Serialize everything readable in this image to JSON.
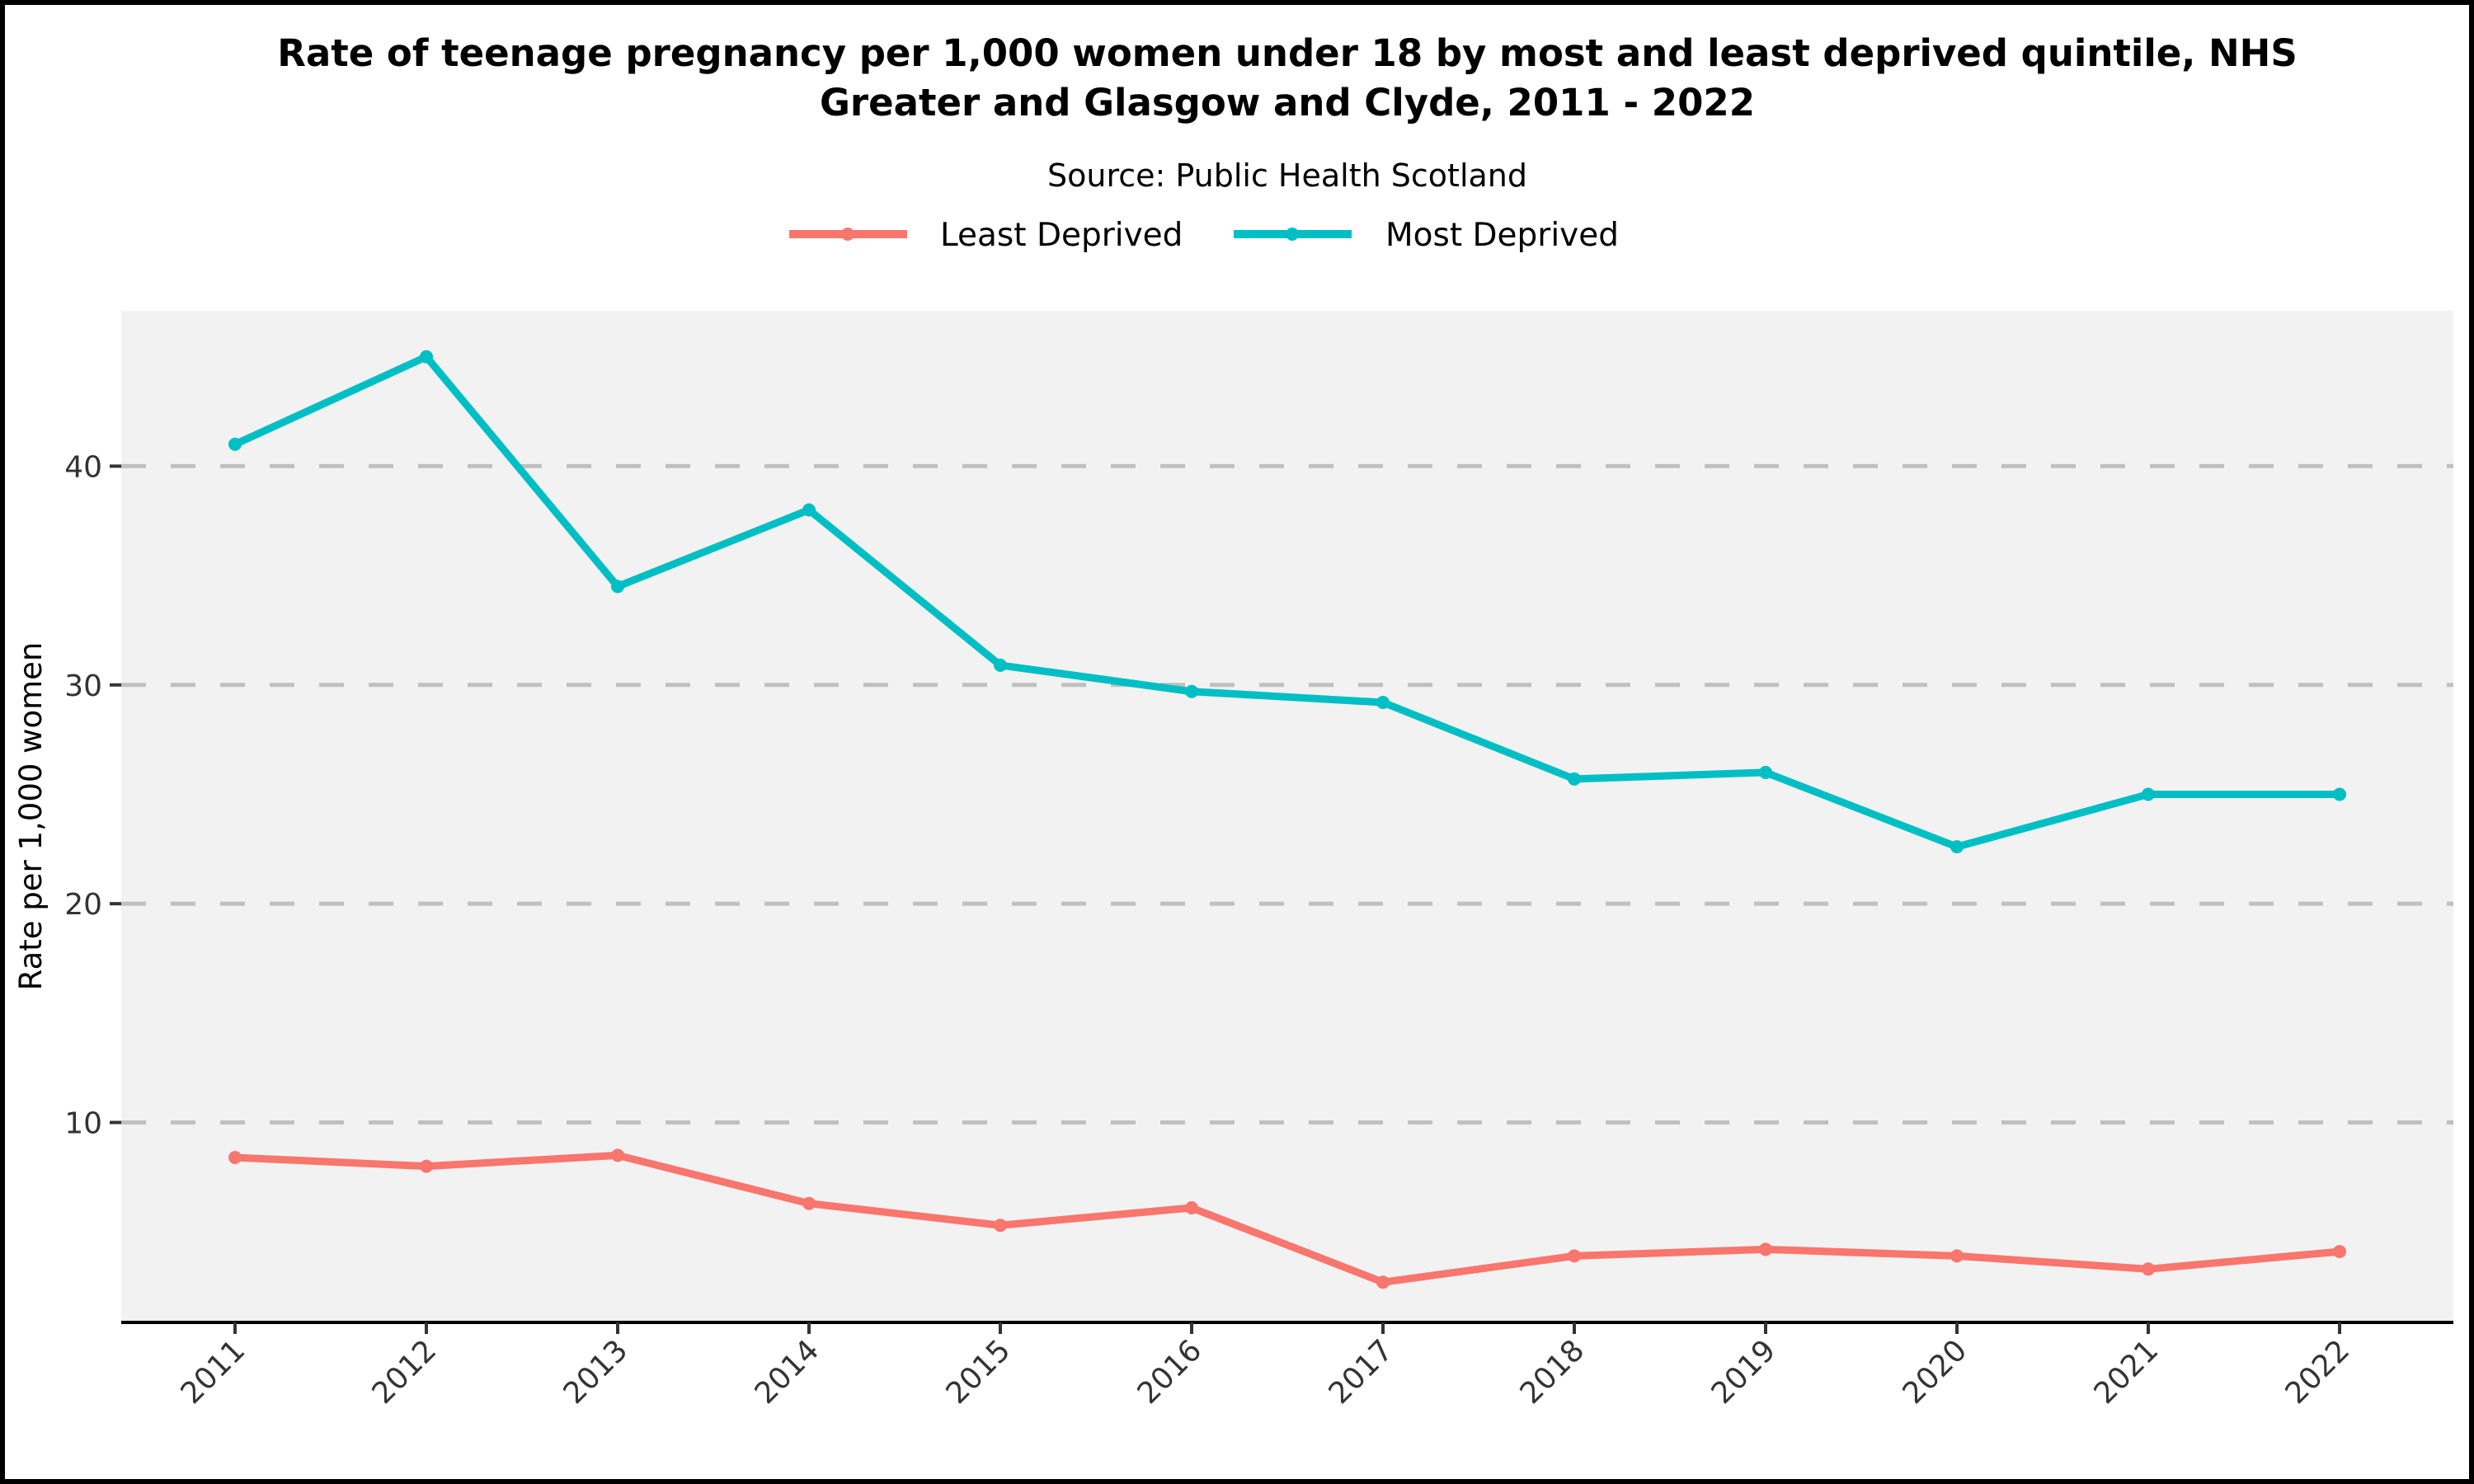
{
  "chart_data": {
    "type": "line",
    "title": "Rate of teenage pregnancy per 1,000 women under 18 by most and least deprived quintile, NHS Greater and Glasgow and Clyde, 2011 - 2022",
    "title_lines": [
      "Rate of teenage pregnancy per 1,000 women under 18 by most and least deprived quintile, NHS",
      "Greater and Glasgow and Clyde, 2011 - 2022"
    ],
    "subtitle": "Source: Public Health Scotland",
    "xlabel": "",
    "ylabel": "Rate per 1,000 women",
    "categories": [
      "2011",
      "2012",
      "2013",
      "2014",
      "2015",
      "2016",
      "2017",
      "2018",
      "2019",
      "2020",
      "2021",
      "2022"
    ],
    "yticks": [
      10,
      20,
      30,
      40
    ],
    "ylim": [
      0.9,
      47.1
    ],
    "grid": "horizontal dashed",
    "legend_position": "top",
    "series": [
      {
        "name": "Least Deprived",
        "color": "#F8766D",
        "values": [
          8.4,
          8.0,
          8.5,
          6.3,
          5.3,
          6.1,
          2.7,
          3.9,
          4.2,
          3.9,
          3.3,
          4.1
        ]
      },
      {
        "name": "Most Deprived",
        "color": "#00BFC4",
        "values": [
          41.0,
          45.0,
          34.5,
          38.0,
          30.9,
          29.7,
          29.2,
          25.7,
          26.0,
          22.6,
          25.0,
          25.0
        ]
      }
    ],
    "panel_background": "#F2F2F2",
    "grid_color": "#C0C0C0"
  }
}
